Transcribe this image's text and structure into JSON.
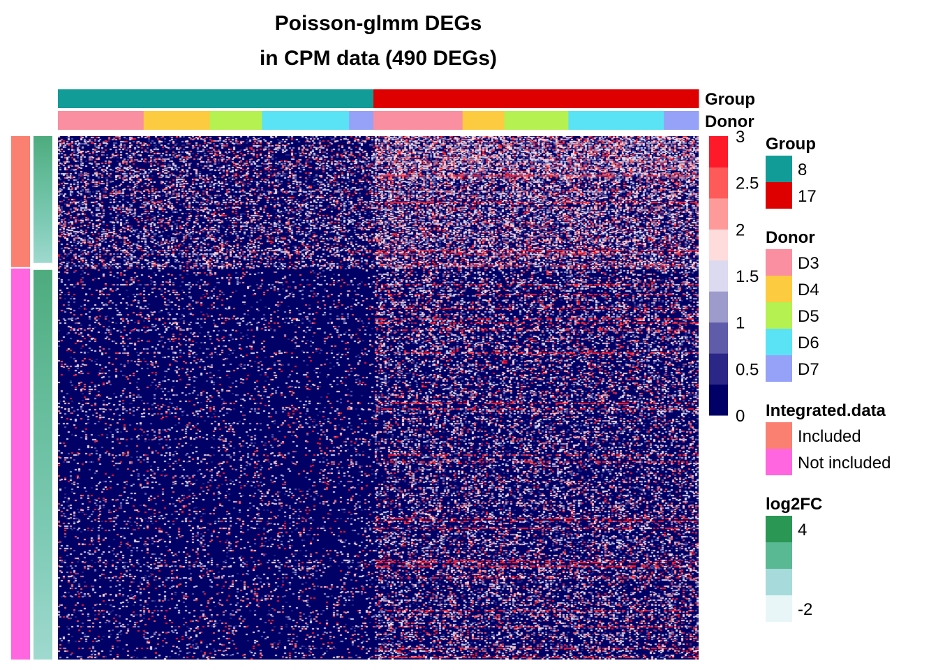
{
  "chart_data": {
    "type": "heatmap",
    "title_line1": "Poisson-glmm DEGs",
    "title_line2": "in CPM data (490 DEGs)",
    "n_rows": 490,
    "value_range": [
      0,
      3
    ],
    "colorbar": {
      "ticks": [
        "3",
        "2.5",
        "2",
        "1.5",
        "1",
        "0.5",
        "0"
      ],
      "colors": [
        "#000066",
        "#2b2787",
        "#5f5caa",
        "#9d9bcb",
        "#dcdaf0",
        "#ffdcdc",
        "#ff9a9a",
        "#ff5a5a",
        "#ff1a2a"
      ]
    },
    "column_annotations": {
      "group_label": "Group",
      "donor_label": "Donor",
      "group_segments": [
        {
          "name": "8",
          "fraction": 0.4924,
          "color": "#129c97"
        },
        {
          "name": "17",
          "fraction": 0.5076,
          "color": "#de0000"
        }
      ],
      "donor_segments": [
        {
          "group": "8",
          "name": "D3",
          "fraction": 0.1337,
          "color": "#f98fa0"
        },
        {
          "group": "8",
          "name": "D4",
          "fraction": 0.1033,
          "color": "#fccb40"
        },
        {
          "group": "8",
          "name": "D5",
          "fraction": 0.0815,
          "color": "#b5f150"
        },
        {
          "group": "8",
          "name": "D6",
          "fraction": 0.1359,
          "color": "#5ae3f5"
        },
        {
          "group": "8",
          "name": "D7",
          "fraction": 0.038,
          "color": "#95a2f7"
        },
        {
          "group": "17",
          "name": "D3",
          "fraction": 0.1391,
          "color": "#f98fa0"
        },
        {
          "group": "17",
          "name": "D4",
          "fraction": 0.0652,
          "color": "#fccb40"
        },
        {
          "group": "17",
          "name": "D5",
          "fraction": 0.1,
          "color": "#b5f150"
        },
        {
          "group": "17",
          "name": "D6",
          "fraction": 0.1489,
          "color": "#5ae3f5"
        },
        {
          "group": "17",
          "name": "D7",
          "fraction": 0.0544,
          "color": "#95a2f7"
        }
      ]
    },
    "row_annotations": {
      "integrated_segments": [
        {
          "name": "Included",
          "fraction": 0.253,
          "color": "#fa8072"
        },
        {
          "name": "Not included",
          "fraction": 0.747,
          "color": "#ff66e0"
        }
      ],
      "log2fc_range": [
        -2,
        4
      ]
    },
    "legends": [
      {
        "title": "Group",
        "items": [
          {
            "label": "8",
            "color": "#129c97"
          },
          {
            "label": "17",
            "color": "#de0000"
          }
        ]
      },
      {
        "title": "Donor",
        "items": [
          {
            "label": "D3",
            "color": "#f98fa0"
          },
          {
            "label": "D4",
            "color": "#fccb40"
          },
          {
            "label": "D5",
            "color": "#b5f150"
          },
          {
            "label": "D6",
            "color": "#5ae3f5"
          },
          {
            "label": "D7",
            "color": "#95a2f7"
          }
        ]
      },
      {
        "title": "Integrated.data",
        "items": [
          {
            "label": "Included",
            "color": "#fa8072"
          },
          {
            "label": "Not included",
            "color": "#ff66e0"
          }
        ]
      },
      {
        "title": "log2FC",
        "items": [
          {
            "label": "4",
            "color": "#2a9755"
          },
          {
            "label": "",
            "color": "#59b993"
          },
          {
            "label": "",
            "color": "#a6dadb"
          },
          {
            "label": "-2",
            "color": "#e8f6f8"
          }
        ]
      }
    ]
  }
}
